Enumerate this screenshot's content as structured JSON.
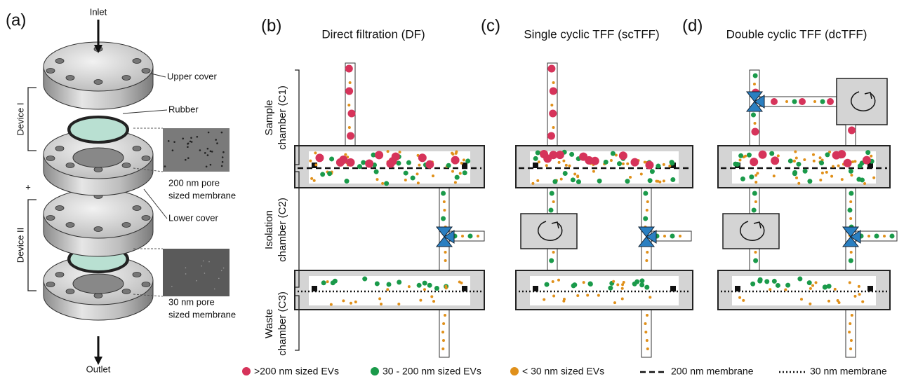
{
  "panels": {
    "a": {
      "label": "(a)",
      "inlet": "Inlet",
      "outlet": "Outlet",
      "upper_cover": "Upper cover",
      "rubber": "Rubber",
      "device_1": "Device I",
      "device_2": "Device II",
      "plus": "+",
      "membrane_200": [
        "200 nm pore",
        "sized membrane"
      ],
      "lower_cover": "Lower cover",
      "membrane_30": [
        "30 nm pore",
        "sized membrane"
      ]
    },
    "b": {
      "label": "(b)",
      "title": "Direct filtration (DF)"
    },
    "c": {
      "label": "(c)",
      "title": "Single cyclic TFF (scTFF)"
    },
    "d": {
      "label": "(d)",
      "title": "Double cyclic TFF (dcTFF)"
    }
  },
  "chambers": [
    [
      "Sample",
      "chamber (C1)"
    ],
    [
      "Isolation",
      "chamber (C2)"
    ],
    [
      "Waste",
      "chamber (C3)"
    ]
  ],
  "legend": [
    ">200 nm sized EVs",
    "30 - 200 nm sized EVs",
    "< 30 nm sized EVs",
    "200 nm membrane",
    "30 nm membrane"
  ]
}
